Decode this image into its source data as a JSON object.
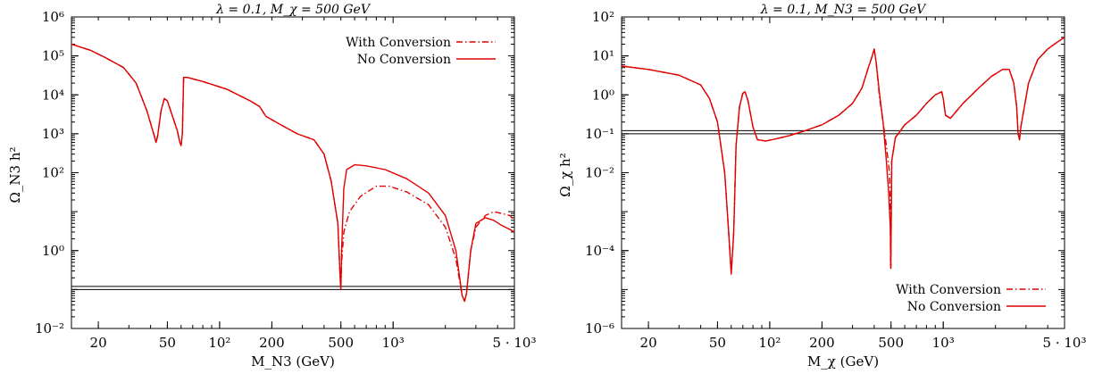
{
  "chart_data": [
    {
      "type": "line",
      "title": "λ = 0.1, M_χ = 500 GeV",
      "xlabel": "M_N3 (GeV)",
      "ylabel": "Ω_N3 h²",
      "xscale": "log",
      "yscale": "log",
      "xlim": [
        14,
        5000
      ],
      "ylim": [
        0.01,
        1000000
      ],
      "grid": false,
      "legend_position": "top-right",
      "x_ticks": [
        {
          "value": 20,
          "label": "20"
        },
        {
          "value": 50,
          "label": "50"
        },
        {
          "value": 100,
          "label": "10²"
        },
        {
          "value": 200,
          "label": "200"
        },
        {
          "value": 500,
          "label": "500"
        },
        {
          "value": 1000,
          "label": "10³"
        },
        {
          "value": 5000,
          "label": "5 · 10³"
        }
      ],
      "y_ticks": [
        {
          "value": 0.01,
          "label": "10⁻²"
        },
        {
          "value": 1,
          "label": "10⁰"
        },
        {
          "value": 100,
          "label": "10²"
        },
        {
          "value": 1000,
          "label": "10³"
        },
        {
          "value": 10000,
          "label": "10⁴"
        },
        {
          "value": 100000,
          "label": "10⁵"
        },
        {
          "value": 1000000,
          "label": "10⁶"
        }
      ],
      "hbands": [
        0.1,
        0.12
      ],
      "series": [
        {
          "name": "With Conversion",
          "color": "#e00000",
          "style": "dashdot",
          "points": [
            [
              14,
              200000
            ],
            [
              18,
              140000
            ],
            [
              22,
              90000
            ],
            [
              28,
              50000
            ],
            [
              33,
              20000
            ],
            [
              38,
              4000
            ],
            [
              42,
              900
            ],
            [
              43,
              600
            ],
            [
              44,
              900
            ],
            [
              46,
              4000
            ],
            [
              48,
              8000
            ],
            [
              50,
              7000
            ],
            [
              54,
              2500
            ],
            [
              57,
              1200
            ],
            [
              59,
              600
            ],
            [
              60,
              500
            ],
            [
              61,
              1000
            ],
            [
              62,
              28000
            ],
            [
              65,
              28000
            ],
            [
              80,
              22000
            ],
            [
              110,
              14000
            ],
            [
              150,
              7000
            ],
            [
              170,
              5000
            ],
            [
              185,
              2800
            ],
            [
              220,
              1800
            ],
            [
              280,
              1000
            ],
            [
              350,
              700
            ],
            [
              400,
              300
            ],
            [
              440,
              60
            ],
            [
              480,
              5
            ],
            [
              495,
              0.2
            ],
            [
              500,
              0.1
            ],
            [
              505,
              0.5
            ],
            [
              520,
              3
            ],
            [
              560,
              10
            ],
            [
              650,
              25
            ],
            [
              800,
              45
            ],
            [
              950,
              45
            ],
            [
              1200,
              32
            ],
            [
              1600,
              15
            ],
            [
              2000,
              4
            ],
            [
              2300,
              0.6
            ],
            [
              2500,
              0.07
            ],
            [
              2580,
              0.05
            ],
            [
              2650,
              0.08
            ],
            [
              2800,
              1
            ],
            [
              3000,
              4
            ],
            [
              3400,
              8
            ],
            [
              3800,
              10
            ],
            [
              4200,
              9
            ],
            [
              4700,
              8
            ],
            [
              5000,
              6
            ]
          ]
        },
        {
          "name": "No Conversion",
          "color": "#e00000",
          "style": "solid",
          "points": [
            [
              14,
              200000
            ],
            [
              18,
              140000
            ],
            [
              22,
              90000
            ],
            [
              28,
              50000
            ],
            [
              33,
              20000
            ],
            [
              38,
              4000
            ],
            [
              42,
              900
            ],
            [
              43,
              600
            ],
            [
              44,
              900
            ],
            [
              46,
              4000
            ],
            [
              48,
              8000
            ],
            [
              50,
              7000
            ],
            [
              54,
              2500
            ],
            [
              57,
              1200
            ],
            [
              59,
              600
            ],
            [
              60,
              500
            ],
            [
              61,
              1000
            ],
            [
              62,
              28000
            ],
            [
              65,
              28000
            ],
            [
              80,
              22000
            ],
            [
              110,
              14000
            ],
            [
              150,
              7000
            ],
            [
              170,
              5000
            ],
            [
              185,
              2800
            ],
            [
              220,
              1800
            ],
            [
              280,
              1000
            ],
            [
              350,
              700
            ],
            [
              400,
              300
            ],
            [
              440,
              60
            ],
            [
              480,
              5
            ],
            [
              495,
              0.2
            ],
            [
              500,
              0.1
            ],
            [
              505,
              1
            ],
            [
              520,
              40
            ],
            [
              540,
              120
            ],
            [
              600,
              160
            ],
            [
              700,
              150
            ],
            [
              900,
              120
            ],
            [
              1200,
              70
            ],
            [
              1600,
              30
            ],
            [
              2000,
              8
            ],
            [
              2300,
              1
            ],
            [
              2500,
              0.07
            ],
            [
              2580,
              0.05
            ],
            [
              2650,
              0.08
            ],
            [
              2800,
              1
            ],
            [
              3000,
              5
            ],
            [
              3400,
              7
            ],
            [
              3800,
              6
            ],
            [
              4200,
              4.5
            ],
            [
              4700,
              3.5
            ],
            [
              5000,
              3
            ]
          ]
        }
      ]
    },
    {
      "type": "line",
      "title": "λ = 0.1, M_N3 = 500 GeV",
      "xlabel": "M_χ (GeV)",
      "ylabel": "Ω_χ h²",
      "xscale": "log",
      "yscale": "log",
      "xlim": [
        14,
        5000
      ],
      "ylim": [
        1e-06,
        100
      ],
      "grid": false,
      "legend_position": "bottom-right",
      "x_ticks": [
        {
          "value": 20,
          "label": "20"
        },
        {
          "value": 50,
          "label": "50"
        },
        {
          "value": 100,
          "label": "10²"
        },
        {
          "value": 200,
          "label": "200"
        },
        {
          "value": 500,
          "label": "500"
        },
        {
          "value": 1000,
          "label": "10³"
        },
        {
          "value": 5000,
          "label": "5 · 10³"
        }
      ],
      "y_ticks": [
        {
          "value": 1e-06,
          "label": "10⁻⁶"
        },
        {
          "value": 0.0001,
          "label": "10⁻⁴"
        },
        {
          "value": 0.01,
          "label": "10⁻²"
        },
        {
          "value": 0.1,
          "label": "10⁻¹"
        },
        {
          "value": 1,
          "label": "10⁰"
        },
        {
          "value": 10,
          "label": "10¹"
        },
        {
          "value": 100,
          "label": "10²"
        }
      ],
      "hbands": [
        0.1,
        0.12
      ],
      "series": [
        {
          "name": "With Conversion",
          "color": "#e00000",
          "style": "dashdot",
          "points": [
            [
              14,
              5.5
            ],
            [
              20,
              4.5
            ],
            [
              30,
              3.2
            ],
            [
              40,
              1.8
            ],
            [
              45,
              0.8
            ],
            [
              50,
              0.2
            ],
            [
              55,
              0.01
            ],
            [
              58,
              0.0003
            ],
            [
              60,
              2.5e-05
            ],
            [
              62,
              0.0003
            ],
            [
              64,
              0.05
            ],
            [
              67,
              0.5
            ],
            [
              70,
              1.1
            ],
            [
              72,
              1.2
            ],
            [
              75,
              0.7
            ],
            [
              80,
              0.15
            ],
            [
              85,
              0.07
            ],
            [
              95,
              0.065
            ],
            [
              110,
              0.075
            ],
            [
              130,
              0.09
            ],
            [
              160,
              0.12
            ],
            [
              200,
              0.17
            ],
            [
              250,
              0.3
            ],
            [
              300,
              0.6
            ],
            [
              340,
              1.5
            ],
            [
              370,
              5
            ],
            [
              390,
              10
            ],
            [
              400,
              15
            ],
            [
              410,
              7
            ],
            [
              430,
              0.8
            ],
            [
              450,
              0.2
            ],
            [
              470,
              0.05
            ],
            [
              490,
              0.01
            ],
            [
              495,
              0.002
            ],
            [
              497,
              4e-05
            ],
            [
              499,
              3.5e-05
            ],
            [
              505,
              0.02
            ],
            [
              530,
              0.08
            ],
            [
              600,
              0.17
            ],
            [
              700,
              0.3
            ],
            [
              800,
              0.6
            ],
            [
              900,
              1
            ],
            [
              980,
              1.2
            ],
            [
              1000,
              0.8
            ],
            [
              1030,
              0.3
            ],
            [
              1100,
              0.25
            ],
            [
              1300,
              0.6
            ],
            [
              1600,
              1.5
            ],
            [
              1900,
              3
            ],
            [
              2200,
              4.5
            ],
            [
              2400,
              4.5
            ],
            [
              2550,
              2
            ],
            [
              2650,
              0.5
            ],
            [
              2700,
              0.1
            ],
            [
              2750,
              0.07
            ],
            [
              2800,
              0.15
            ],
            [
              3100,
              2
            ],
            [
              3500,
              8
            ],
            [
              4000,
              15
            ],
            [
              4500,
              22
            ],
            [
              5000,
              30
            ]
          ]
        },
        {
          "name": "No Conversion",
          "color": "#e00000",
          "style": "solid",
          "points": [
            [
              14,
              5.5
            ],
            [
              20,
              4.5
            ],
            [
              30,
              3.2
            ],
            [
              40,
              1.8
            ],
            [
              45,
              0.8
            ],
            [
              50,
              0.2
            ],
            [
              55,
              0.01
            ],
            [
              58,
              0.0003
            ],
            [
              60,
              2.5e-05
            ],
            [
              62,
              0.0003
            ],
            [
              64,
              0.05
            ],
            [
              67,
              0.5
            ],
            [
              70,
              1.1
            ],
            [
              72,
              1.2
            ],
            [
              75,
              0.7
            ],
            [
              80,
              0.15
            ],
            [
              85,
              0.07
            ],
            [
              95,
              0.065
            ],
            [
              110,
              0.075
            ],
            [
              130,
              0.09
            ],
            [
              160,
              0.12
            ],
            [
              200,
              0.17
            ],
            [
              250,
              0.3
            ],
            [
              300,
              0.6
            ],
            [
              340,
              1.5
            ],
            [
              370,
              5
            ],
            [
              390,
              10
            ],
            [
              400,
              15
            ],
            [
              410,
              7
            ],
            [
              430,
              1
            ],
            [
              450,
              0.2
            ],
            [
              470,
              0.02
            ],
            [
              485,
              0.003
            ],
            [
              495,
              0.0004
            ],
            [
              499,
              3.5e-05
            ],
            [
              505,
              0.02
            ],
            [
              530,
              0.08
            ],
            [
              600,
              0.17
            ],
            [
              700,
              0.3
            ],
            [
              800,
              0.6
            ],
            [
              900,
              1
            ],
            [
              980,
              1.2
            ],
            [
              1000,
              0.8
            ],
            [
              1030,
              0.3
            ],
            [
              1100,
              0.25
            ],
            [
              1300,
              0.6
            ],
            [
              1600,
              1.5
            ],
            [
              1900,
              3
            ],
            [
              2200,
              4.5
            ],
            [
              2400,
              4.5
            ],
            [
              2550,
              2
            ],
            [
              2650,
              0.5
            ],
            [
              2700,
              0.1
            ],
            [
              2750,
              0.07
            ],
            [
              2800,
              0.15
            ],
            [
              3100,
              2
            ],
            [
              3500,
              8
            ],
            [
              4000,
              15
            ],
            [
              4500,
              22
            ],
            [
              5000,
              30
            ]
          ]
        }
      ]
    }
  ]
}
